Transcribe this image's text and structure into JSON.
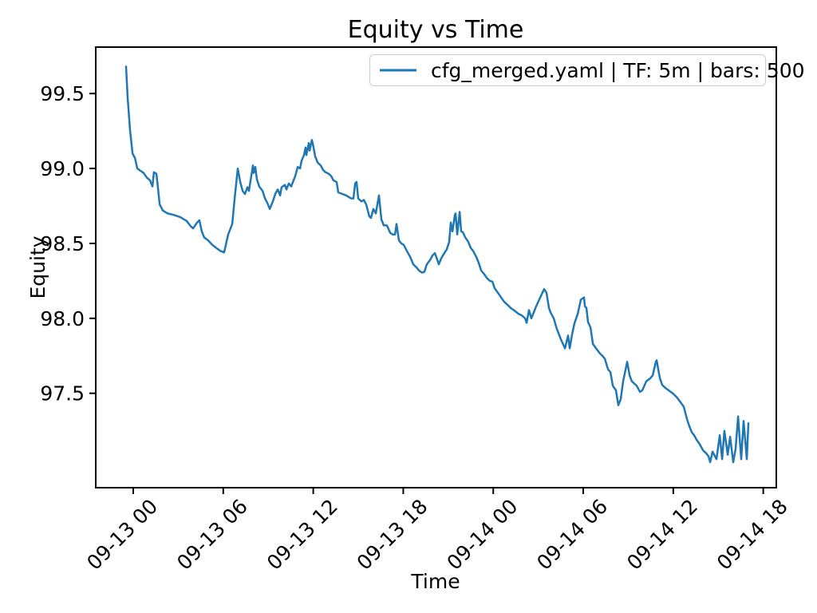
{
  "chart_data": {
    "type": "line",
    "title": "Equity vs Time",
    "xlabel": "Time",
    "ylabel": "Equity",
    "grid": false,
    "legend_position": "upper right",
    "line_color": "#1f77b4",
    "axis_color": "#000000",
    "x_unit": "hours relative to tick 09-13 00",
    "xlim": [
      -2.5,
      42.87
    ],
    "ylim": [
      96.87,
      99.81
    ],
    "x_ticks": [
      {
        "t": 0,
        "label": "09-13 00"
      },
      {
        "t": 6,
        "label": "09-13 06"
      },
      {
        "t": 12,
        "label": "09-13 12"
      },
      {
        "t": 18,
        "label": "09-13 18"
      },
      {
        "t": 24,
        "label": "09-14 00"
      },
      {
        "t": 30,
        "label": "09-14 06"
      },
      {
        "t": 36,
        "label": "09-14 12"
      },
      {
        "t": 42,
        "label": "09-14 18"
      }
    ],
    "y_ticks": [
      {
        "v": 97.5,
        "label": "97.5"
      },
      {
        "v": 98.0,
        "label": "98.0"
      },
      {
        "v": 98.5,
        "label": "98.5"
      },
      {
        "v": 99.0,
        "label": "99.0"
      },
      {
        "v": 99.5,
        "label": "99.5"
      }
    ],
    "series": [
      {
        "name": "cfg_merged.yaml | TF: 5m | bars: 500",
        "color": "#1f77b4",
        "points": [
          [
            -0.48,
            99.68
          ],
          [
            -0.37,
            99.47
          ],
          [
            -0.21,
            99.25
          ],
          [
            -0.05,
            99.1
          ],
          [
            0.11,
            99.07
          ],
          [
            0.27,
            99.0
          ],
          [
            0.48,
            98.985
          ],
          [
            0.69,
            98.97
          ],
          [
            0.9,
            98.94
          ],
          [
            1.12,
            98.92
          ],
          [
            1.28,
            98.88
          ],
          [
            1.38,
            98.975
          ],
          [
            1.54,
            98.965
          ],
          [
            1.65,
            98.87
          ],
          [
            1.76,
            98.76
          ],
          [
            1.97,
            98.72
          ],
          [
            2.29,
            98.7
          ],
          [
            2.71,
            98.69
          ],
          [
            3.14,
            98.675
          ],
          [
            3.56,
            98.65
          ],
          [
            3.83,
            98.615
          ],
          [
            3.99,
            98.6
          ],
          [
            4.26,
            98.64
          ],
          [
            4.41,
            98.655
          ],
          [
            4.57,
            98.58
          ],
          [
            4.73,
            98.54
          ],
          [
            5.0,
            98.52
          ],
          [
            5.27,
            98.49
          ],
          [
            5.53,
            98.47
          ],
          [
            5.8,
            98.45
          ],
          [
            6.06,
            98.44
          ],
          [
            6.33,
            98.56
          ],
          [
            6.6,
            98.63
          ],
          [
            6.76,
            98.8
          ],
          [
            6.97,
            99.0
          ],
          [
            7.13,
            98.91
          ],
          [
            7.29,
            98.85
          ],
          [
            7.45,
            98.83
          ],
          [
            7.61,
            98.875
          ],
          [
            7.71,
            98.85
          ],
          [
            7.98,
            99.02
          ],
          [
            8.03,
            98.97
          ],
          [
            8.14,
            99.01
          ],
          [
            8.24,
            98.93
          ],
          [
            8.4,
            98.88
          ],
          [
            8.62,
            98.85
          ],
          [
            8.78,
            98.8
          ],
          [
            8.94,
            98.77
          ],
          [
            9.1,
            98.73
          ],
          [
            9.31,
            98.78
          ],
          [
            9.47,
            98.83
          ],
          [
            9.63,
            98.86
          ],
          [
            9.79,
            98.82
          ],
          [
            9.89,
            98.875
          ],
          [
            10.11,
            98.89
          ],
          [
            10.21,
            98.86
          ],
          [
            10.37,
            98.9
          ],
          [
            10.53,
            98.88
          ],
          [
            10.8,
            98.95
          ],
          [
            10.96,
            99.01
          ],
          [
            11.12,
            99.0
          ],
          [
            11.22,
            99.05
          ],
          [
            11.38,
            99.09
          ],
          [
            11.49,
            99.14
          ],
          [
            11.54,
            99.09
          ],
          [
            11.7,
            99.17
          ],
          [
            11.76,
            99.12
          ],
          [
            11.91,
            99.19
          ],
          [
            11.97,
            99.165
          ],
          [
            12.13,
            99.08
          ],
          [
            12.29,
            99.04
          ],
          [
            12.5,
            99.02
          ],
          [
            12.66,
            98.99
          ],
          [
            12.82,
            98.975
          ],
          [
            13.03,
            98.965
          ],
          [
            13.19,
            98.95
          ],
          [
            13.35,
            98.92
          ],
          [
            13.56,
            98.91
          ],
          [
            13.67,
            98.84
          ],
          [
            13.94,
            98.83
          ],
          [
            14.2,
            98.82
          ],
          [
            14.52,
            98.8
          ],
          [
            14.68,
            98.8
          ],
          [
            14.79,
            98.9
          ],
          [
            14.89,
            98.91
          ],
          [
            15.0,
            98.8
          ],
          [
            15.21,
            98.78
          ],
          [
            15.37,
            98.79
          ],
          [
            15.53,
            98.76
          ],
          [
            15.74,
            98.68
          ],
          [
            15.85,
            98.67
          ],
          [
            16.01,
            98.73
          ],
          [
            16.17,
            98.7
          ],
          [
            16.38,
            98.82
          ],
          [
            16.54,
            98.66
          ],
          [
            16.7,
            98.62
          ],
          [
            16.91,
            98.62
          ],
          [
            17.13,
            98.57
          ],
          [
            17.29,
            98.56
          ],
          [
            17.45,
            98.56
          ],
          [
            17.55,
            98.63
          ],
          [
            17.71,
            98.52
          ],
          [
            17.87,
            98.5
          ],
          [
            18.03,
            98.49
          ],
          [
            18.24,
            98.45
          ],
          [
            18.46,
            98.41
          ],
          [
            18.67,
            98.36
          ],
          [
            18.88,
            98.34
          ],
          [
            19.04,
            98.32
          ],
          [
            19.26,
            98.305
          ],
          [
            19.41,
            98.31
          ],
          [
            19.57,
            98.36
          ],
          [
            19.79,
            98.39
          ],
          [
            19.95,
            98.42
          ],
          [
            20.11,
            98.435
          ],
          [
            20.27,
            98.39
          ],
          [
            20.37,
            98.36
          ],
          [
            20.53,
            98.4
          ],
          [
            20.74,
            98.435
          ],
          [
            20.9,
            98.46
          ],
          [
            21.06,
            98.51
          ],
          [
            21.17,
            98.64
          ],
          [
            21.28,
            98.58
          ],
          [
            21.44,
            98.69
          ],
          [
            21.49,
            98.7
          ],
          [
            21.6,
            98.56
          ],
          [
            21.76,
            98.71
          ],
          [
            21.86,
            98.58
          ],
          [
            21.97,
            98.575
          ],
          [
            22.13,
            98.54
          ],
          [
            22.34,
            98.51
          ],
          [
            22.5,
            98.47
          ],
          [
            22.66,
            98.45
          ],
          [
            22.87,
            98.41
          ],
          [
            23.03,
            98.37
          ],
          [
            23.19,
            98.32
          ],
          [
            23.4,
            98.295
          ],
          [
            23.56,
            98.27
          ],
          [
            23.78,
            98.25
          ],
          [
            23.94,
            98.245
          ],
          [
            24.1,
            98.2
          ],
          [
            24.31,
            98.17
          ],
          [
            24.52,
            98.14
          ],
          [
            24.73,
            98.11
          ],
          [
            24.95,
            98.09
          ],
          [
            25.16,
            98.07
          ],
          [
            25.43,
            98.05
          ],
          [
            25.69,
            98.03
          ],
          [
            25.9,
            98.02
          ],
          [
            26.12,
            98.0
          ],
          [
            26.22,
            97.97
          ],
          [
            26.38,
            98.055
          ],
          [
            26.54,
            98.0
          ],
          [
            26.7,
            98.04
          ],
          [
            26.86,
            98.08
          ],
          [
            27.13,
            98.14
          ],
          [
            27.39,
            98.195
          ],
          [
            27.55,
            98.17
          ],
          [
            27.71,
            98.07
          ],
          [
            27.82,
            98.04
          ],
          [
            28.03,
            98.0
          ],
          [
            28.24,
            97.93
          ],
          [
            28.51,
            97.86
          ],
          [
            28.78,
            97.8
          ],
          [
            28.99,
            97.885
          ],
          [
            29.1,
            97.8
          ],
          [
            29.26,
            97.895
          ],
          [
            29.41,
            97.965
          ],
          [
            29.63,
            98.03
          ],
          [
            29.84,
            98.125
          ],
          [
            30.05,
            98.14
          ],
          [
            30.11,
            98.08
          ],
          [
            30.21,
            98.07
          ],
          [
            30.32,
            97.975
          ],
          [
            30.48,
            97.94
          ],
          [
            30.64,
            97.83
          ],
          [
            30.85,
            97.8
          ],
          [
            31.12,
            97.765
          ],
          [
            31.28,
            97.75
          ],
          [
            31.44,
            97.73
          ],
          [
            31.65,
            97.66
          ],
          [
            31.81,
            97.64
          ],
          [
            31.97,
            97.55
          ],
          [
            32.18,
            97.52
          ],
          [
            32.34,
            97.42
          ],
          [
            32.5,
            97.46
          ],
          [
            32.66,
            97.58
          ],
          [
            32.93,
            97.71
          ],
          [
            33.09,
            97.62
          ],
          [
            33.24,
            97.58
          ],
          [
            33.4,
            97.565
          ],
          [
            33.56,
            97.55
          ],
          [
            33.78,
            97.51
          ],
          [
            33.94,
            97.52
          ],
          [
            34.2,
            97.58
          ],
          [
            34.47,
            97.6
          ],
          [
            34.63,
            97.62
          ],
          [
            34.84,
            97.71
          ],
          [
            34.89,
            97.72
          ],
          [
            35.0,
            97.66
          ],
          [
            35.11,
            97.6
          ],
          [
            35.27,
            97.555
          ],
          [
            35.43,
            97.54
          ],
          [
            35.69,
            97.52
          ],
          [
            35.96,
            97.5
          ],
          [
            36.22,
            97.475
          ],
          [
            36.49,
            97.44
          ],
          [
            36.7,
            97.41
          ],
          [
            36.91,
            97.33
          ],
          [
            37.07,
            97.28
          ],
          [
            37.23,
            97.24
          ],
          [
            37.39,
            97.22
          ],
          [
            37.55,
            97.19
          ],
          [
            37.77,
            97.16
          ],
          [
            37.98,
            97.12
          ],
          [
            38.19,
            97.1
          ],
          [
            38.35,
            97.08
          ],
          [
            38.46,
            97.04
          ],
          [
            38.62,
            97.11
          ],
          [
            38.88,
            97.06
          ],
          [
            39.1,
            97.22
          ],
          [
            39.26,
            97.06
          ],
          [
            39.41,
            97.25
          ],
          [
            39.63,
            97.09
          ],
          [
            39.79,
            97.21
          ],
          [
            40.0,
            97.04
          ],
          [
            40.16,
            97.13
          ],
          [
            40.32,
            97.345
          ],
          [
            40.53,
            97.06
          ],
          [
            40.69,
            97.315
          ],
          [
            40.9,
            97.06
          ],
          [
            41.01,
            97.3
          ]
        ]
      }
    ]
  }
}
